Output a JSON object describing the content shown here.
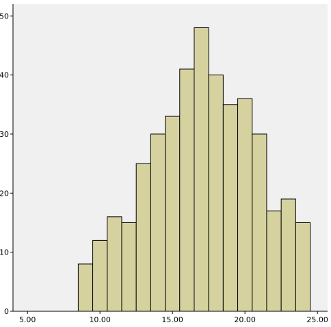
{
  "chart_data": {
    "type": "bar",
    "title": "",
    "xlabel": "",
    "ylabel": "",
    "xlim": [
      4,
      25.7
    ],
    "ylim": [
      0,
      52
    ],
    "x_ticks": [
      {
        "value": 5,
        "label": "5.00"
      },
      {
        "value": 10,
        "label": "10.00"
      },
      {
        "value": 15,
        "label": "15.00"
      },
      {
        "value": 20,
        "label": "20.00"
      },
      {
        "value": 25,
        "label": "25.00"
      }
    ],
    "y_ticks": [
      {
        "value": 0,
        "label": "0"
      },
      {
        "value": 10,
        "label": "10"
      },
      {
        "value": 20,
        "label": "20"
      },
      {
        "value": 30,
        "label": "30"
      },
      {
        "value": 40,
        "label": "40"
      },
      {
        "value": 50,
        "label": "50"
      }
    ],
    "bin_width": 1,
    "bins": [
      {
        "x_start": 8.5,
        "value": 8
      },
      {
        "x_start": 9.5,
        "value": 12
      },
      {
        "x_start": 10.5,
        "value": 16
      },
      {
        "x_start": 11.5,
        "value": 15
      },
      {
        "x_start": 12.5,
        "value": 25
      },
      {
        "x_start": 13.5,
        "value": 30
      },
      {
        "x_start": 14.5,
        "value": 33
      },
      {
        "x_start": 15.5,
        "value": 41
      },
      {
        "x_start": 16.5,
        "value": 48
      },
      {
        "x_start": 17.5,
        "value": 40
      },
      {
        "x_start": 18.5,
        "value": 35
      },
      {
        "x_start": 19.5,
        "value": 36
      },
      {
        "x_start": 20.5,
        "value": 30
      },
      {
        "x_start": 21.5,
        "value": 17
      },
      {
        "x_start": 22.5,
        "value": 19
      },
      {
        "x_start": 23.5,
        "value": 15
      }
    ],
    "grid": false,
    "legend": "none",
    "colors": {
      "bar_fill": "#d6d2a0",
      "plot_background": "#f0f0f0",
      "axis": "#000000"
    }
  }
}
